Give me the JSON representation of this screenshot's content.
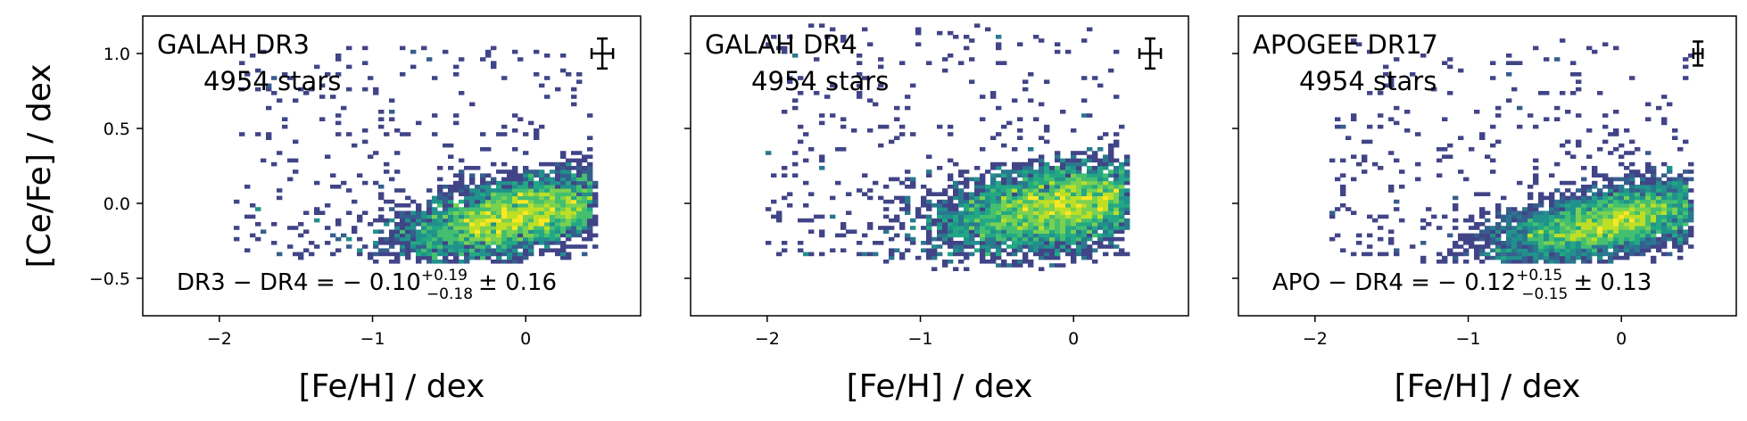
{
  "chart_data": [
    {
      "type": "heatmap",
      "title": "GALAH DR3",
      "subtitle": "4954 stars",
      "xlabel": "[Fe/H] / dex",
      "ylabel": "[Ce/Fe] / dex",
      "xlim": [
        -2.5,
        0.75
      ],
      "ylim": [
        -0.75,
        1.25
      ],
      "xticks": [
        -2,
        -1,
        0
      ],
      "xtick_labels": [
        "−2",
        "−1",
        "0"
      ],
      "yticks": [
        -0.5,
        0.0,
        0.5,
        1.0
      ],
      "ytick_labels": [
        "−0.5",
        "0.0",
        "0.5",
        "1.0"
      ],
      "grid": false,
      "annotation": {
        "lhs": "DR3 − DR4 = − 0.10",
        "sup": "+0.19",
        "sub": "−0.18",
        "rhs": "± 0.16"
      },
      "density": {
        "center": [
          -0.05,
          -0.08
        ],
        "spread": [
          0.38,
          0.12
        ],
        "tilt": 0.2,
        "fe_range": [
          -1.9,
          0.45
        ],
        "ce_range": [
          -0.4,
          1.05
        ]
      },
      "errorbar": {
        "x": 0.5,
        "y": 1.0,
        "xerr": 0.07,
        "yerr": 0.1
      }
    },
    {
      "type": "heatmap",
      "title": "GALAH DR4",
      "subtitle": "4954 stars",
      "xlabel": "[Fe/H] / dex",
      "ylabel": "",
      "xlim": [
        -2.5,
        0.75
      ],
      "ylim": [
        -0.75,
        1.25
      ],
      "xticks": [
        -2,
        -1,
        0
      ],
      "xtick_labels": [
        "−2",
        "−1",
        "0"
      ],
      "yticks": [
        -0.5,
        0.0,
        0.5,
        1.0
      ],
      "ytick_labels": [],
      "grid": false,
      "annotation": null,
      "density": {
        "center": [
          -0.1,
          -0.02
        ],
        "spread": [
          0.4,
          0.14
        ],
        "tilt": 0.15,
        "fe_range": [
          -2.0,
          0.35
        ],
        "ce_range": [
          -0.45,
          1.2
        ]
      },
      "errorbar": {
        "x": 0.5,
        "y": 1.0,
        "xerr": 0.07,
        "yerr": 0.1
      }
    },
    {
      "type": "heatmap",
      "title": "APOGEE DR17",
      "subtitle": "4954 stars",
      "xlabel": "[Fe/H] / dex",
      "ylabel": "",
      "xlim": [
        -2.5,
        0.75
      ],
      "ylim": [
        -0.75,
        1.25
      ],
      "xticks": [
        -2,
        -1,
        0
      ],
      "xtick_labels": [
        "−2",
        "−1",
        "0"
      ],
      "yticks": [
        -0.5,
        0.0,
        0.5,
        1.0
      ],
      "ytick_labels": [],
      "grid": false,
      "annotation": {
        "lhs": "APO − DR4 = − 0.12",
        "sup": "+0.15",
        "sub": "−0.15",
        "rhs": "± 0.13"
      },
      "density": {
        "center": [
          -0.05,
          -0.12
        ],
        "spread": [
          0.38,
          0.11
        ],
        "tilt": 0.2,
        "fe_range": [
          -1.9,
          0.45
        ],
        "ce_range": [
          -0.4,
          1.1
        ]
      },
      "errorbar": {
        "x": 0.5,
        "y": 1.0,
        "xerr": 0.03,
        "yerr": 0.08
      }
    }
  ]
}
